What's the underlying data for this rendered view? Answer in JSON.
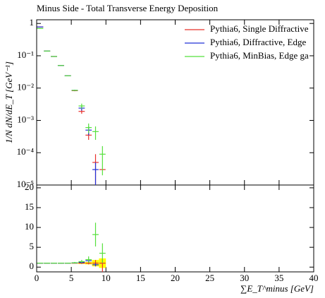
{
  "chart_data": [
    {
      "type": "line",
      "title": "Minus Side - Total Transverse Energy Deposition",
      "y_label": "1/N dN/dE_T [GeV⁻¹]",
      "log_y": true,
      "x": [
        0.5,
        1.5,
        2.5,
        3.5,
        4.5,
        5.5,
        6.5,
        7.5,
        8.5,
        9.5
      ],
      "xlim": [
        0,
        40
      ],
      "ylim": [
        1e-05,
        1.3
      ],
      "yticks": [
        {
          "value": 1e-05,
          "label": "10⁻⁵"
        },
        {
          "value": 0.0001,
          "label": "10⁻⁴"
        },
        {
          "value": 0.001,
          "label": "10⁻³"
        },
        {
          "value": 0.01,
          "label": "10⁻²"
        },
        {
          "value": 0.1,
          "label": "10⁻¹"
        },
        1
      ],
      "series": [
        {
          "name": "Pythia6, Single Diffractive",
          "color": "#e8302b",
          "values": [
            0.78,
            0.14,
            0.095,
            0.05,
            0.024,
            0.0083,
            0.0019,
            0.00035,
            5e-05,
            3e-05
          ],
          "errors": [
            0,
            0,
            0,
            0,
            0,
            0.0003,
            0.0003,
            0.0001,
            4e-05,
            0
          ]
        },
        {
          "name": "Pythia6, Diffractive, Edge",
          "color": "#2030d8",
          "values": [
            0.78,
            0.14,
            0.095,
            0.05,
            0.024,
            0.0085,
            0.0024,
            0.0005,
            3e-05,
            null
          ],
          "errors": [
            0,
            0,
            0,
            0,
            0,
            0.0003,
            0.0004,
            0.00015,
            2e-05,
            null
          ]
        },
        {
          "name": "Pythia6, MinBias, Edge ga",
          "color": "#55e03c",
          "values": [
            0.7,
            0.14,
            0.095,
            0.05,
            0.024,
            0.0085,
            0.0028,
            0.0006,
            0.00045,
            9e-05
          ],
          "errors": [
            0,
            0,
            0,
            0,
            0,
            0.0003,
            0.0005,
            0.0002,
            0.0002,
            7e-05
          ]
        }
      ],
      "legend": "top-right"
    },
    {
      "type": "line",
      "x_label": "∑E_T^minus [GeV]",
      "x": [
        0.5,
        1.5,
        2.5,
        3.5,
        4.5,
        5.5,
        6.5,
        7.5,
        8.5,
        9.5
      ],
      "xlim": [
        0,
        40
      ],
      "xticks": [
        0,
        5,
        10,
        15,
        20,
        25,
        30,
        35,
        40
      ],
      "ylim": [
        -1.2,
        20.7
      ],
      "yticks": [
        0,
        5,
        10,
        15,
        20
      ],
      "band_color": "#ffff00",
      "series": [
        {
          "color": "#e8302b",
          "values": [
            1,
            1,
            1,
            1,
            1,
            1,
            1,
            1,
            1,
            1
          ],
          "errors": [
            0,
            0,
            0,
            0,
            0,
            0.1,
            0.2,
            0.3,
            0.8,
            1.2
          ]
        },
        {
          "color": "#2030d8",
          "values": [
            1,
            1,
            1,
            1,
            1,
            1.05,
            1.2,
            1.6,
            0.6,
            null
          ],
          "errors": [
            0,
            0,
            0,
            0,
            0,
            0.1,
            0.3,
            0.5,
            0.4,
            null
          ]
        },
        {
          "color": "#55e03c",
          "values": [
            1,
            1,
            1,
            1,
            1,
            1.1,
            1.4,
            1.9,
            8.2,
            3.5
          ],
          "errors": [
            0,
            0,
            0,
            0,
            0,
            0.2,
            0.4,
            0.8,
            3,
            2.5
          ]
        }
      ]
    }
  ]
}
